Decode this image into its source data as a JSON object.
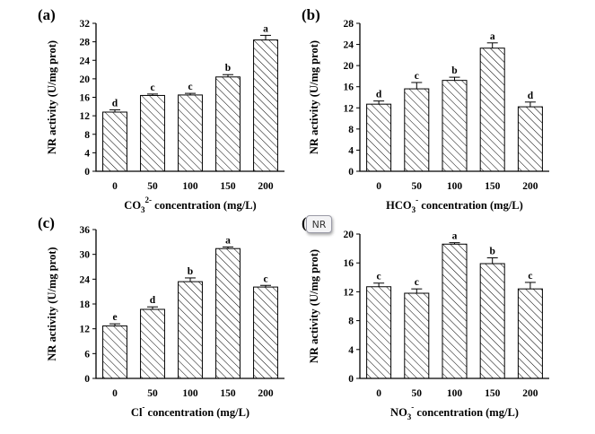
{
  "tooltip": {
    "text": "NR"
  },
  "chart_data": [
    {
      "type": "bar",
      "panel_label": "(a)",
      "ylabel": "NR activity (U/mg prot)",
      "xlabel": {
        "ion": "CO3",
        "sup": "2-",
        "rest": " concentration (mg/L)"
      },
      "categories": [
        "0",
        "50",
        "100",
        "150",
        "200"
      ],
      "values": [
        12.8,
        16.4,
        16.5,
        20.4,
        28.4
      ],
      "errors": [
        0.5,
        0.3,
        0.35,
        0.5,
        1.0
      ],
      "letters": [
        "d",
        "c",
        "c",
        "b",
        "a"
      ],
      "ylim": [
        0,
        32
      ],
      "yticks": [
        "0",
        "4",
        "8",
        "12",
        "16",
        "20",
        "24",
        "28",
        "32"
      ],
      "grid": false
    },
    {
      "type": "bar",
      "panel_label": "(b)",
      "ylabel": "NR activity (U/mg prot)",
      "xlabel": {
        "ion": "HCO3",
        "sup": "-",
        "rest": " concentration (mg/L)"
      },
      "categories": [
        "0",
        "50",
        "100",
        "150",
        "200"
      ],
      "values": [
        12.7,
        15.6,
        17.2,
        23.3,
        12.2
      ],
      "errors": [
        0.6,
        1.2,
        0.6,
        1.0,
        0.9
      ],
      "letters": [
        "d",
        "c",
        "b",
        "a",
        "d"
      ],
      "ylim": [
        0,
        28
      ],
      "yticks": [
        "0",
        "4",
        "8",
        "12",
        "16",
        "20",
        "24",
        "28"
      ],
      "grid": false
    },
    {
      "type": "bar",
      "panel_label": "(c)",
      "ylabel": "NR activity (U/mg prot)",
      "xlabel": {
        "ion": "Cl",
        "sup": "-",
        "rest": " concentration (mg/L)"
      },
      "categories": [
        "0",
        "50",
        "100",
        "150",
        "200"
      ],
      "values": [
        12.7,
        16.7,
        23.4,
        31.4,
        22.1
      ],
      "errors": [
        0.5,
        0.6,
        0.9,
        0.4,
        0.4
      ],
      "letters": [
        "e",
        "d",
        "b",
        "a",
        "c"
      ],
      "ylim": [
        0,
        36
      ],
      "yticks": [
        "0",
        "6",
        "12",
        "18",
        "24",
        "30",
        "36"
      ],
      "grid": false
    },
    {
      "type": "bar",
      "panel_label": "(d)",
      "ylabel": "NR activity (U/mg prot)",
      "xlabel": {
        "ion": "NO3",
        "sup": "-",
        "rest": " concentration (mg/L)"
      },
      "categories": [
        "0",
        "50",
        "100",
        "150",
        "200"
      ],
      "values": [
        12.7,
        11.8,
        18.6,
        15.9,
        12.4
      ],
      "errors": [
        0.5,
        0.6,
        0.2,
        0.8,
        0.9
      ],
      "letters": [
        "c",
        "c",
        "a",
        "b",
        "c"
      ],
      "ylim": [
        0,
        20
      ],
      "yticks": [
        "0",
        "4",
        "8",
        "12",
        "16",
        "20"
      ],
      "grid": false
    }
  ]
}
